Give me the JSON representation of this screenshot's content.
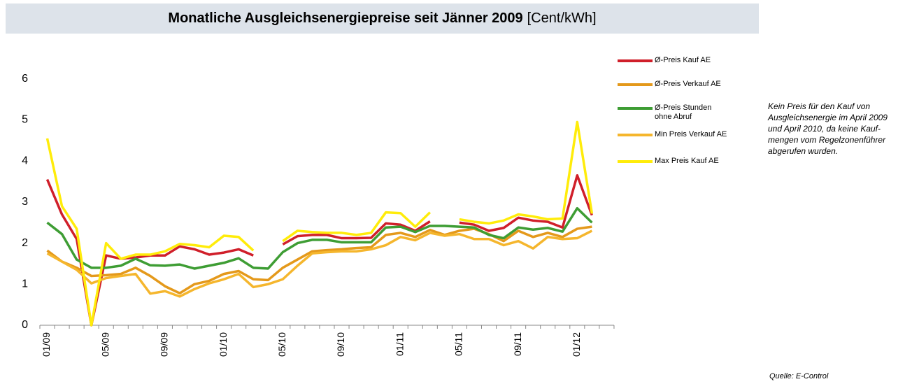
{
  "chart_data": {
    "type": "line",
    "title": "Monatliche Ausgleichsenergiepreise seit Jänner 2009",
    "unit": "[Cent/kWh]",
    "categories": [
      "01/09",
      null,
      null,
      null,
      "05/09",
      null,
      null,
      null,
      "09/09",
      null,
      null,
      null,
      "01/10",
      null,
      null,
      null,
      "05/10",
      null,
      null,
      null,
      "09/10",
      null,
      null,
      null,
      "01/11",
      null,
      null,
      null,
      "05/11",
      null,
      null,
      null,
      "09/11",
      null,
      null,
      null,
      "01/12",
      null,
      null
    ],
    "ylim": [
      0,
      6.4
    ],
    "yticks": [
      0,
      1,
      2,
      3,
      4,
      5,
      6
    ],
    "grid": false,
    "legend": "right",
    "series": [
      {
        "name": "Ø-Preis Kauf AE",
        "color": "#d01f2a",
        "values": [
          3.55,
          2.7,
          2.1,
          0,
          1.7,
          1.62,
          1.65,
          1.7,
          1.7,
          1.92,
          1.85,
          1.72,
          1.77,
          1.85,
          1.7,
          null,
          1.97,
          2.17,
          2.2,
          2.2,
          2.12,
          2.12,
          2.13,
          2.48,
          2.45,
          2.3,
          2.53,
          null,
          2.5,
          2.45,
          2.3,
          2.37,
          2.62,
          2.55,
          2.52,
          2.38,
          3.65,
          2.68,
          null
        ]
      },
      {
        "name": "Ø-Preis Verkauf AE",
        "color": "#e4991b",
        "values": [
          1.82,
          1.55,
          1.4,
          1.2,
          1.22,
          1.25,
          1.4,
          1.2,
          0.95,
          0.78,
          1.0,
          1.08,
          1.25,
          1.32,
          1.12,
          1.1,
          1.4,
          1.6,
          1.8,
          1.83,
          1.85,
          1.88,
          1.9,
          2.2,
          2.25,
          2.15,
          2.32,
          2.2,
          2.3,
          2.35,
          2.22,
          2.05,
          2.3,
          2.15,
          2.25,
          2.15,
          2.35,
          2.4,
          null
        ]
      },
      {
        "name": "Ø-Preis Stunden ohne Abruf",
        "color": "#3e9d34",
        "values": [
          2.5,
          2.22,
          1.6,
          1.4,
          1.4,
          1.45,
          1.62,
          1.46,
          1.45,
          1.48,
          1.38,
          1.45,
          1.52,
          1.63,
          1.4,
          1.38,
          1.78,
          2.0,
          2.08,
          2.08,
          2.02,
          2.02,
          2.02,
          2.38,
          2.4,
          2.27,
          2.42,
          2.42,
          2.4,
          2.38,
          2.2,
          2.12,
          2.38,
          2.33,
          2.37,
          2.28,
          2.85,
          2.5,
          null
        ]
      },
      {
        "name": "Min Preis Verkauf AE",
        "color": "#f5b62d",
        "values": [
          1.75,
          1.55,
          1.35,
          1.02,
          1.15,
          1.2,
          1.25,
          0.77,
          0.83,
          0.7,
          0.88,
          1.02,
          1.12,
          1.25,
          0.93,
          1.0,
          1.12,
          1.45,
          1.75,
          1.78,
          1.8,
          1.8,
          1.85,
          1.95,
          2.15,
          2.07,
          2.25,
          2.18,
          2.22,
          2.1,
          2.1,
          1.95,
          2.05,
          1.87,
          2.15,
          2.1,
          2.12,
          2.3,
          null
        ]
      },
      {
        "name": "Max Preis Kauf AE",
        "color": "#ffec0a",
        "values": [
          4.55,
          2.9,
          2.35,
          0,
          2.0,
          1.62,
          1.72,
          1.72,
          1.8,
          1.98,
          1.95,
          1.9,
          2.18,
          2.15,
          1.82,
          null,
          2.05,
          2.3,
          2.27,
          2.25,
          2.25,
          2.2,
          2.25,
          2.75,
          2.73,
          2.4,
          2.75,
          null,
          2.58,
          2.52,
          2.48,
          2.55,
          2.7,
          2.65,
          2.58,
          2.6,
          4.95,
          2.72,
          null
        ]
      }
    ],
    "note": [
      "Kein Preis für den Kauf von",
      "Ausgleichsenergie im April 2009",
      "und April 2010, da keine Kauf-",
      "mengen vom Regelzonenführer",
      "abgerufen wurden."
    ],
    "source": "Quelle: E-Control"
  }
}
